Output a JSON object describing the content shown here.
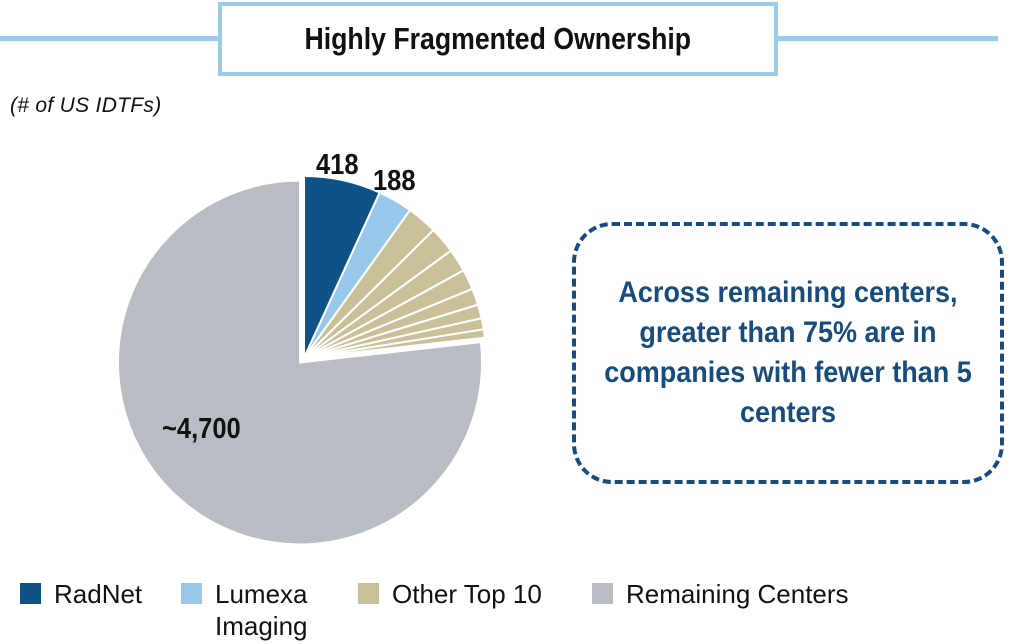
{
  "header": {
    "title": "Highly Fragmented Ownership"
  },
  "subtitle": "(# of US IDTFs)",
  "callout": {
    "text": "Across remaining centers, greater than 75% are in companies with fewer than 5 centers"
  },
  "legend": [
    {
      "label": "RadNet",
      "color": "#0f5286"
    },
    {
      "label": "Lumexa Imaging",
      "color": "#97c8ec"
    },
    {
      "label": "Other Top 10",
      "color": "#c9bf98"
    },
    {
      "label": "Remaining Centers",
      "color": "#b7bdc3"
    }
  ],
  "chart_data": {
    "type": "pie",
    "title": "Highly Fragmented Ownership",
    "subtitle": "(# of US IDTFs)",
    "unit": "# of US IDTFs",
    "slices": [
      {
        "label": "RadNet",
        "value": 418,
        "display": "418",
        "color": "#0f5286"
      },
      {
        "label": "Lumexa Imaging",
        "value": 188,
        "display": "188",
        "color": "#97c8ec"
      },
      {
        "label": "Other Top 10",
        "value": 165,
        "display": "",
        "color": "#c9bf98"
      },
      {
        "label": "Other Top 10",
        "value": 145,
        "display": "",
        "color": "#c9bf98"
      },
      {
        "label": "Other Top 10",
        "value": 125,
        "display": "",
        "color": "#c9bf98"
      },
      {
        "label": "Other Top 10",
        "value": 110,
        "display": "",
        "color": "#c9bf98"
      },
      {
        "label": "Other Top 10",
        "value": 90,
        "display": "",
        "color": "#c9bf98"
      },
      {
        "label": "Other Top 10",
        "value": 75,
        "display": "",
        "color": "#c9bf98"
      },
      {
        "label": "Other Top 10",
        "value": 60,
        "display": "",
        "color": "#c9bf98"
      },
      {
        "label": "Other Top 10",
        "value": 45,
        "display": "",
        "color": "#c9bf98"
      },
      {
        "label": "Remaining Centers",
        "value": 4700,
        "display": "~4,700",
        "color": "#b7bdc3"
      }
    ],
    "exploded_slice": "Remaining Centers",
    "legend_position": "bottom"
  }
}
